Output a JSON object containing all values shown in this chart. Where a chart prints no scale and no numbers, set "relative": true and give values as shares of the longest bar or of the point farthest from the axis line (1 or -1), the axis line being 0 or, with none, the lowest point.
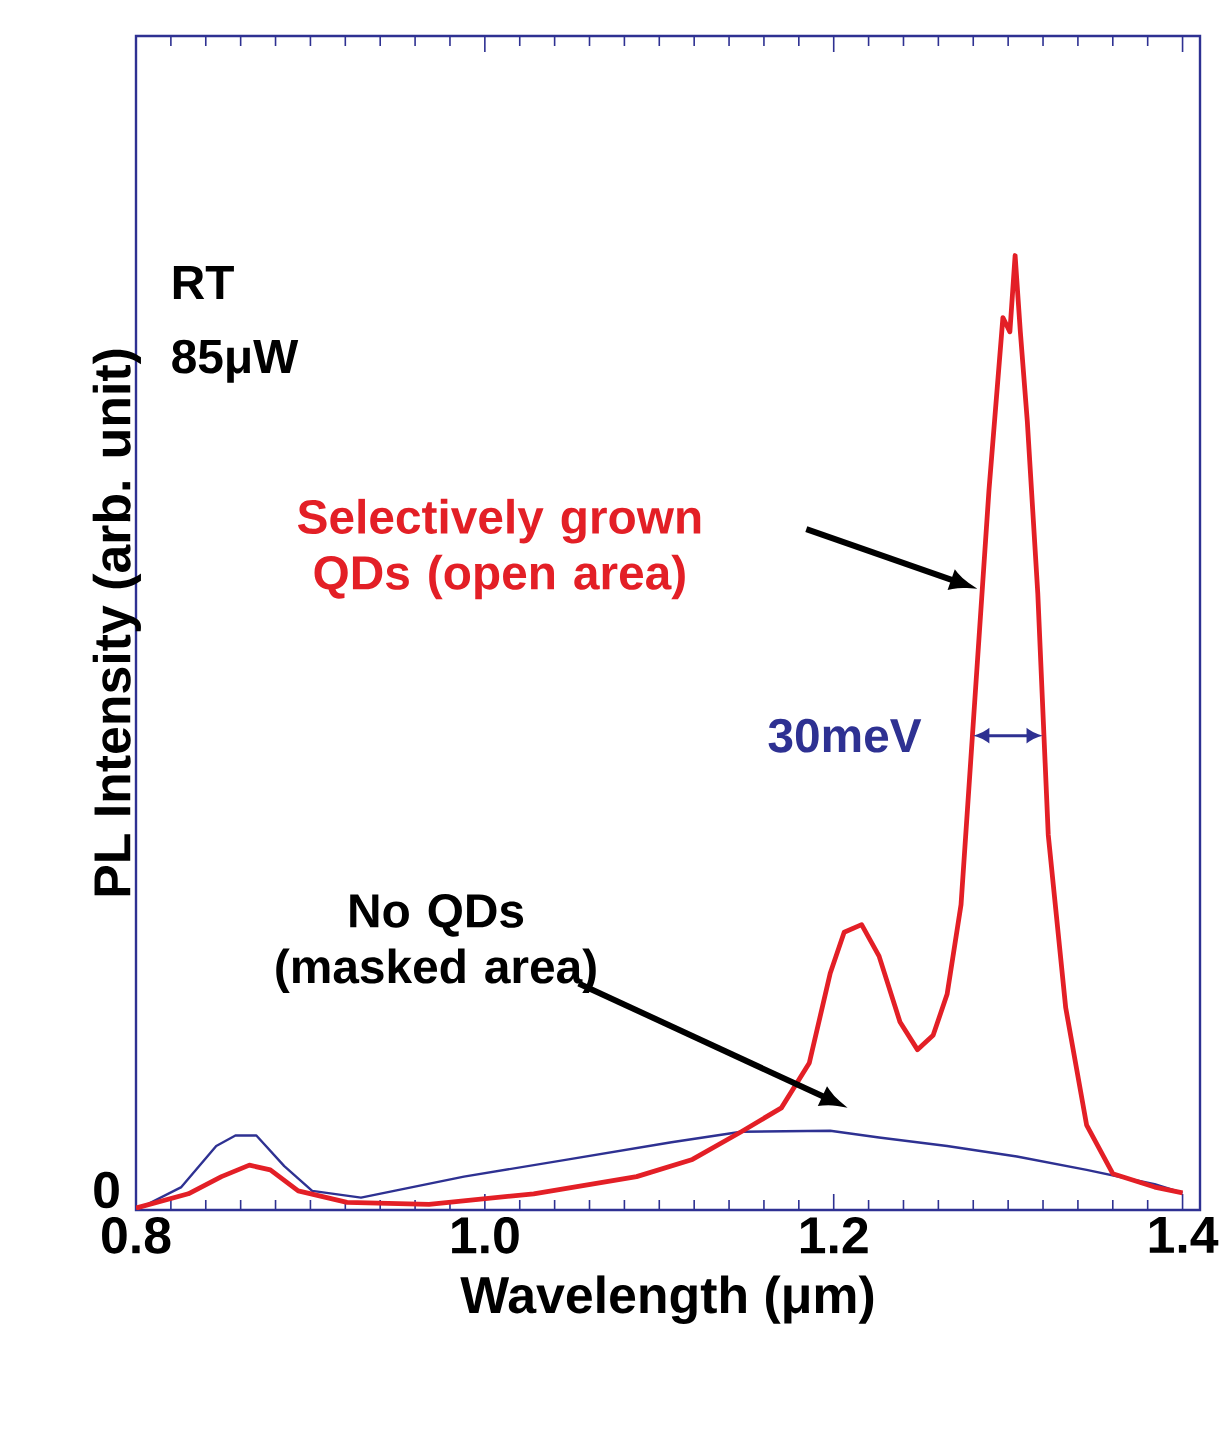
{
  "chart_data": {
    "type": "line",
    "relative": true,
    "xlabel": "Wavelength (μm)",
    "ylabel": "PL Intensity (arb. unit)",
    "xlim": [
      0.8,
      1.41
    ],
    "xticks": [
      {
        "value": 0.8,
        "label": "0.8"
      },
      {
        "value": 1.0,
        "label": "1.0"
      },
      {
        "value": 1.2,
        "label": "1.2"
      },
      {
        "value": 1.4,
        "label": "1.4"
      }
    ],
    "legend": false,
    "grid": false,
    "marker": "none",
    "line_style": "solid",
    "annotations": [
      "RT",
      "85μW",
      "0",
      "30meV",
      "No QDs (masked area)"
    ],
    "series": [
      {
        "name": "Selectively grown QDs (open area)",
        "color": "#e31f26",
        "x": [
          0.8,
          0.83,
          0.849,
          0.865,
          0.877,
          0.893,
          0.921,
          0.968,
          1.028,
          1.087,
          1.119,
          1.147,
          1.17,
          1.186,
          1.198,
          1.206,
          1.216,
          1.226,
          1.238,
          1.248,
          1.257,
          1.265,
          1.273,
          1.281,
          1.289,
          1.297,
          1.301,
          1.304,
          1.307,
          1.311,
          1.317,
          1.323,
          1.333,
          1.345,
          1.36,
          1.384,
          1.4
        ],
        "values": [
          0.002,
          0.017,
          0.035,
          0.047,
          0.042,
          0.02,
          0.008,
          0.006,
          0.017,
          0.035,
          0.053,
          0.082,
          0.107,
          0.154,
          0.248,
          0.291,
          0.299,
          0.266,
          0.197,
          0.168,
          0.183,
          0.226,
          0.32,
          0.537,
          0.754,
          0.935,
          0.92,
          1.0,
          0.92,
          0.826,
          0.646,
          0.393,
          0.212,
          0.089,
          0.038,
          0.024,
          0.018
        ]
      },
      {
        "color": "#2e3192",
        "x": [
          0.8,
          0.826,
          0.846,
          0.857,
          0.869,
          0.885,
          0.901,
          0.929,
          0.988,
          1.048,
          1.107,
          1.147,
          1.198,
          1.226,
          1.265,
          1.305,
          1.345,
          1.384,
          1.4
        ],
        "values": [
          0.0,
          0.024,
          0.067,
          0.078,
          0.078,
          0.046,
          0.02,
          0.013,
          0.035,
          0.053,
          0.071,
          0.082,
          0.083,
          0.076,
          0.067,
          0.056,
          0.042,
          0.027,
          0.018
        ]
      }
    ]
  }
}
